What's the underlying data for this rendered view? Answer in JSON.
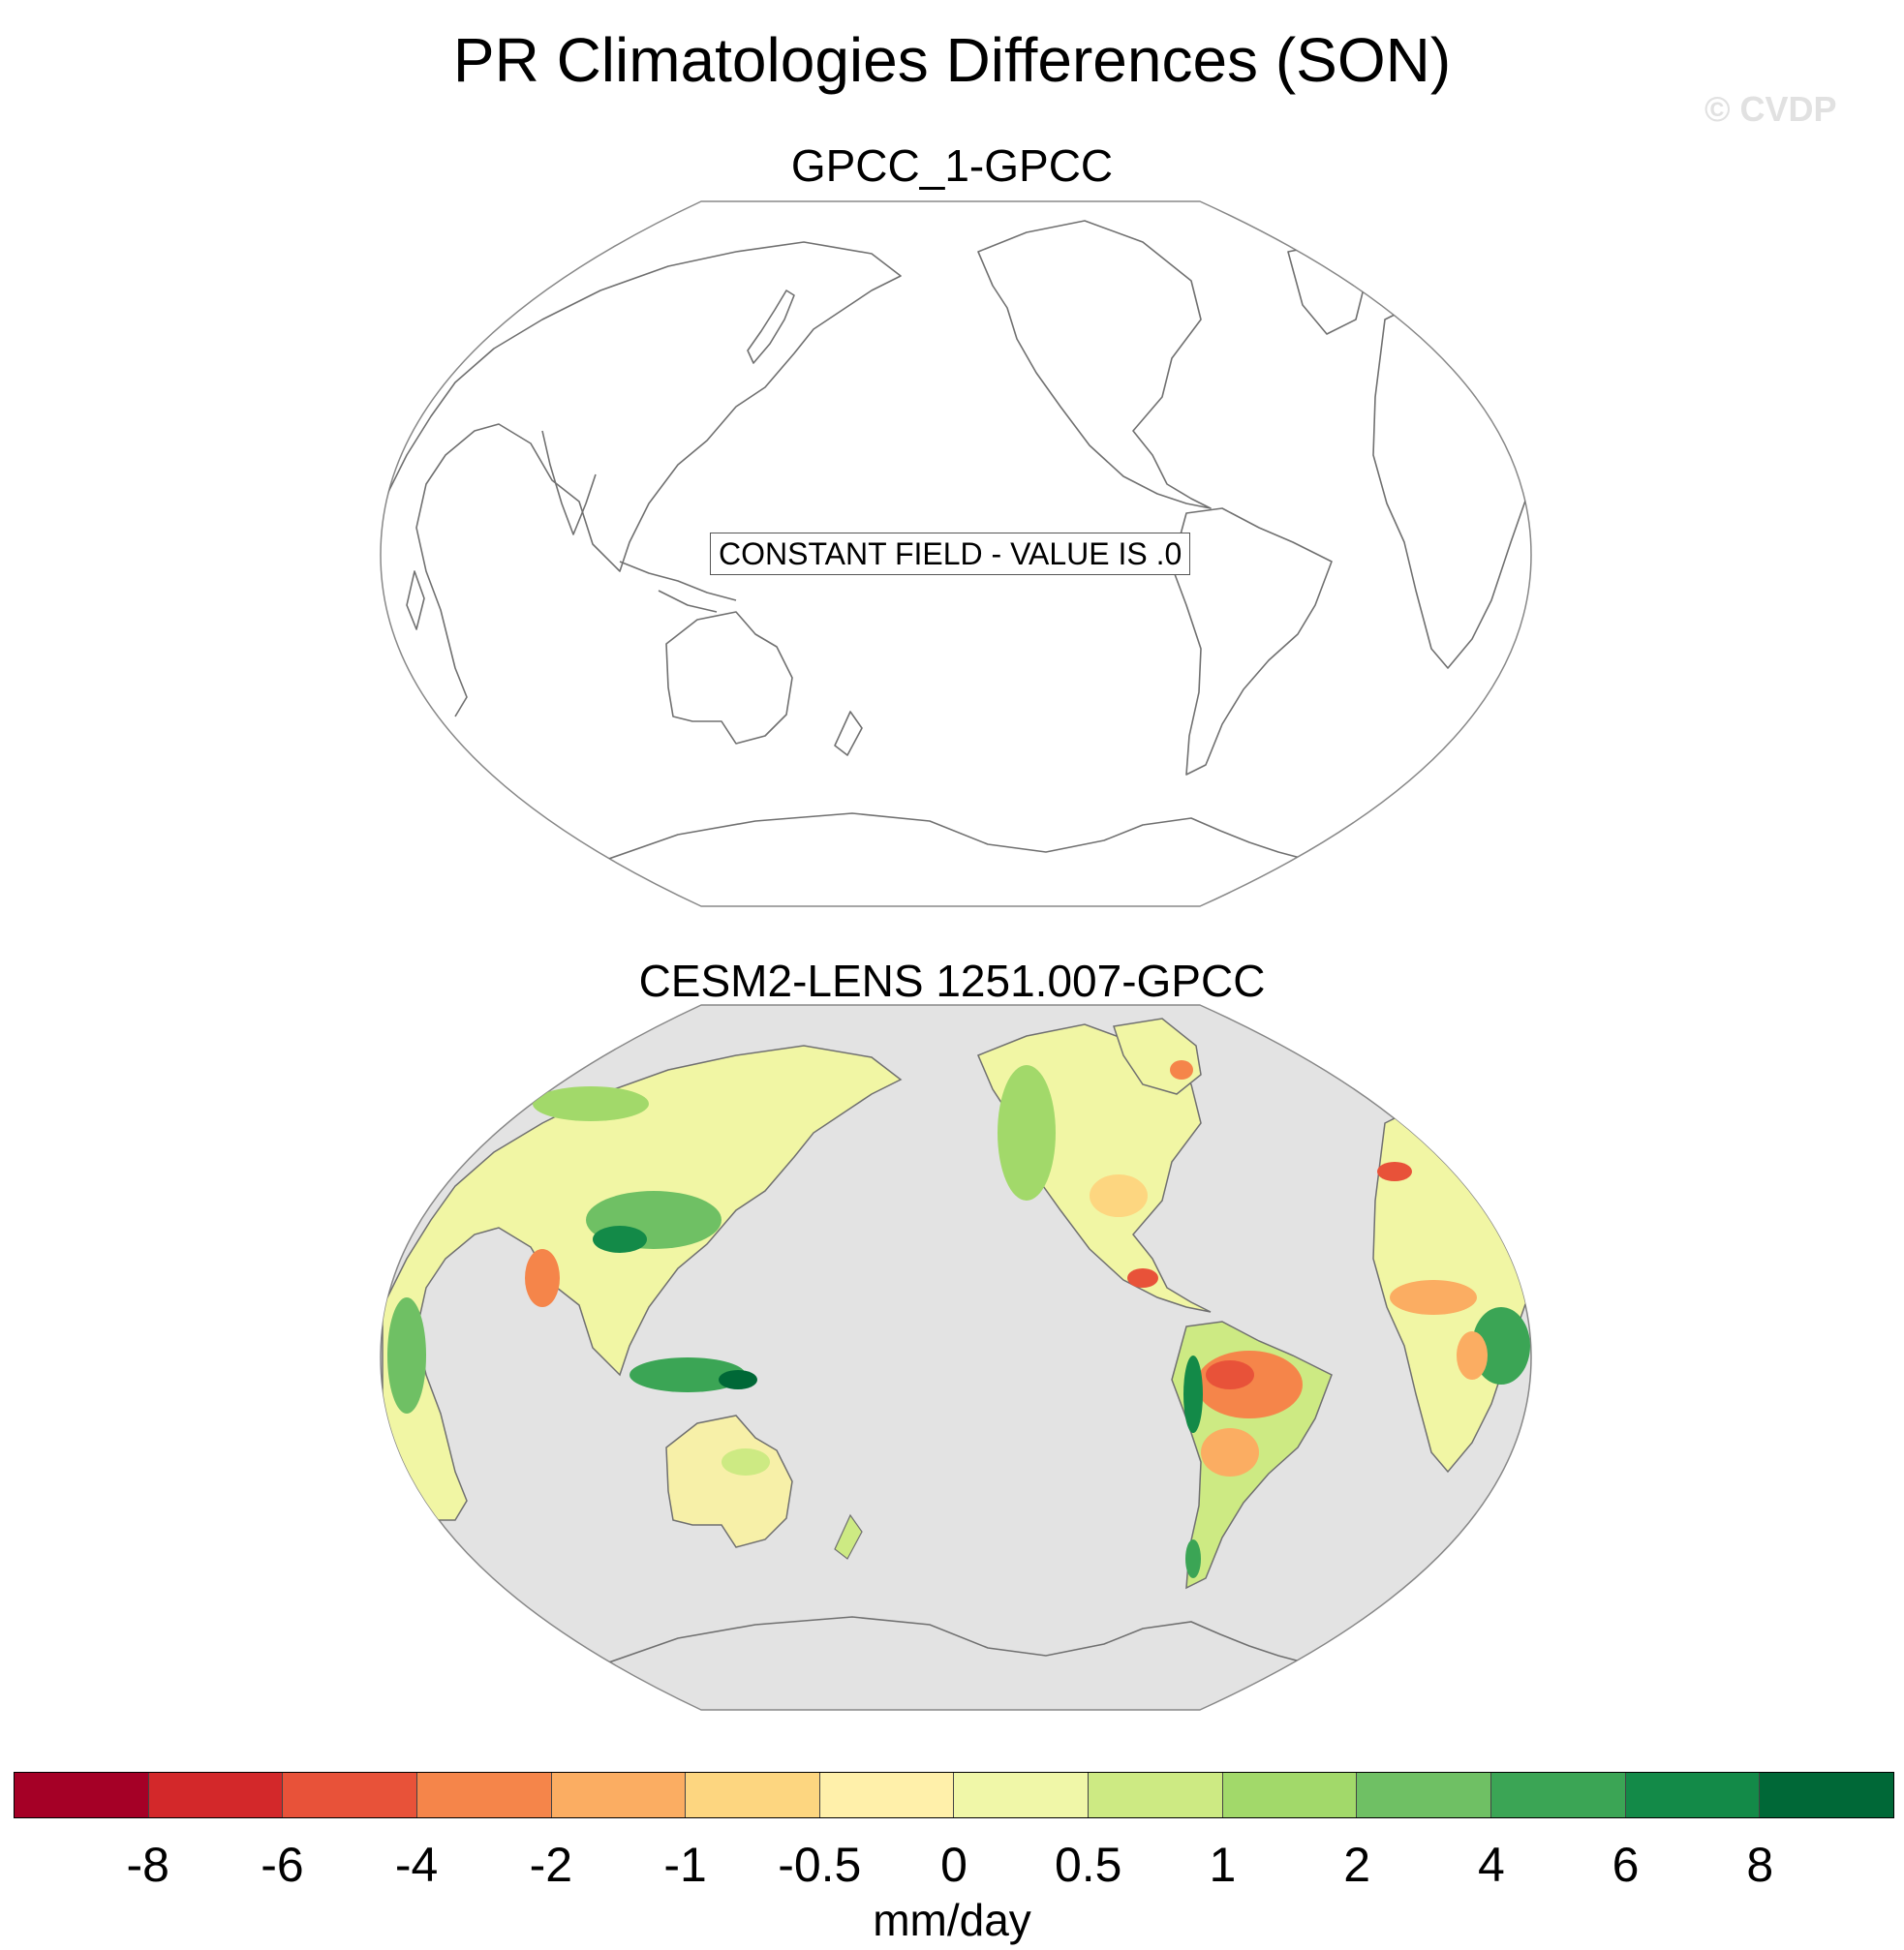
{
  "title": "PR Climatologies Differences (SON)",
  "watermark": "© CVDP",
  "panels": [
    {
      "title": "GPCC_1-GPCC",
      "annotation": "CONSTANT FIELD - VALUE IS .0"
    },
    {
      "title": "CESM2-LENS 1251.007-GPCC"
    }
  ],
  "colorbar": {
    "units": "mm/day",
    "tick_labels": [
      "-8",
      "-6",
      "-4",
      "-2",
      "-1",
      "-0.5",
      "0",
      "0.5",
      "1",
      "2",
      "4",
      "6",
      "8"
    ],
    "colors": [
      "#a50026",
      "#d3282a",
      "#e85239",
      "#f5854a",
      "#fbad62",
      "#fdd680",
      "#fff0aa",
      "#f0f7a8",
      "#cdea83",
      "#a2d96a",
      "#6fc064",
      "#3ba555",
      "#138a48",
      "#006837"
    ]
  },
  "colors": {
    "ocean_missing": "#e3e3e3",
    "coastline": "#707070",
    "land_base": "#f1f6a4"
  }
}
